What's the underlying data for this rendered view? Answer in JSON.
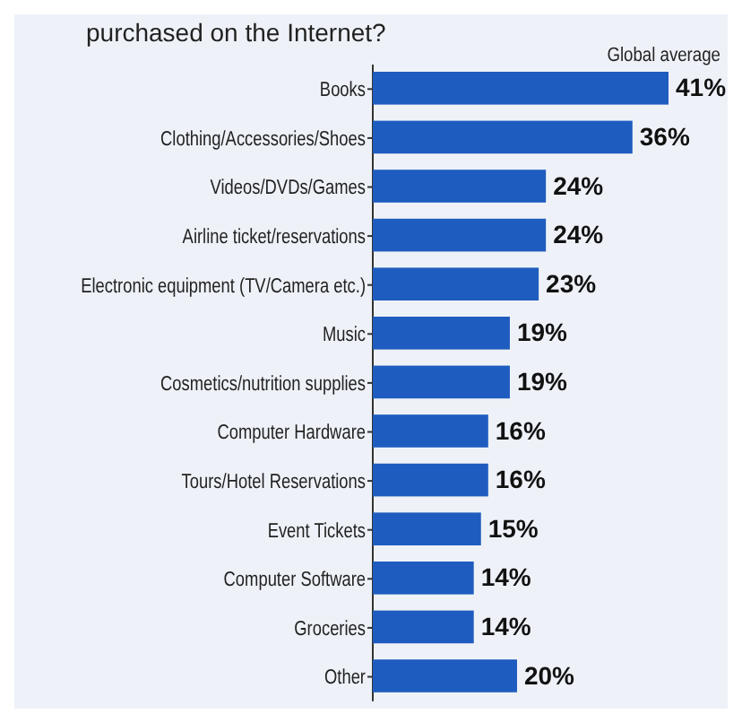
{
  "chart_data": {
    "type": "bar",
    "orientation": "horizontal",
    "title": "purchased on the Internet?",
    "categories": [
      "Books",
      "Clothing/Accessories/Shoes",
      "Videos/DVDs/Games",
      "Airline ticket/reservations",
      "Electronic equipment (TV/Camera etc.)",
      "Music",
      "Cosmetics/nutrition supplies",
      "Computer Hardware",
      "Tours/Hotel Reservations",
      "Event Tickets",
      "Computer Software",
      "Groceries",
      "Other"
    ],
    "series": [
      {
        "name": "Global average",
        "color": "#1f5cbf",
        "values": [
          41,
          36,
          24,
          24,
          23,
          19,
          19,
          16,
          16,
          15,
          14,
          14,
          20
        ],
        "value_labels": [
          "41%",
          "36%",
          "24%",
          "24%",
          "23%",
          "19%",
          "19%",
          "16%",
          "16%",
          "15%",
          "14%",
          "14%",
          "20%"
        ]
      }
    ],
    "legend": "top right"
  }
}
